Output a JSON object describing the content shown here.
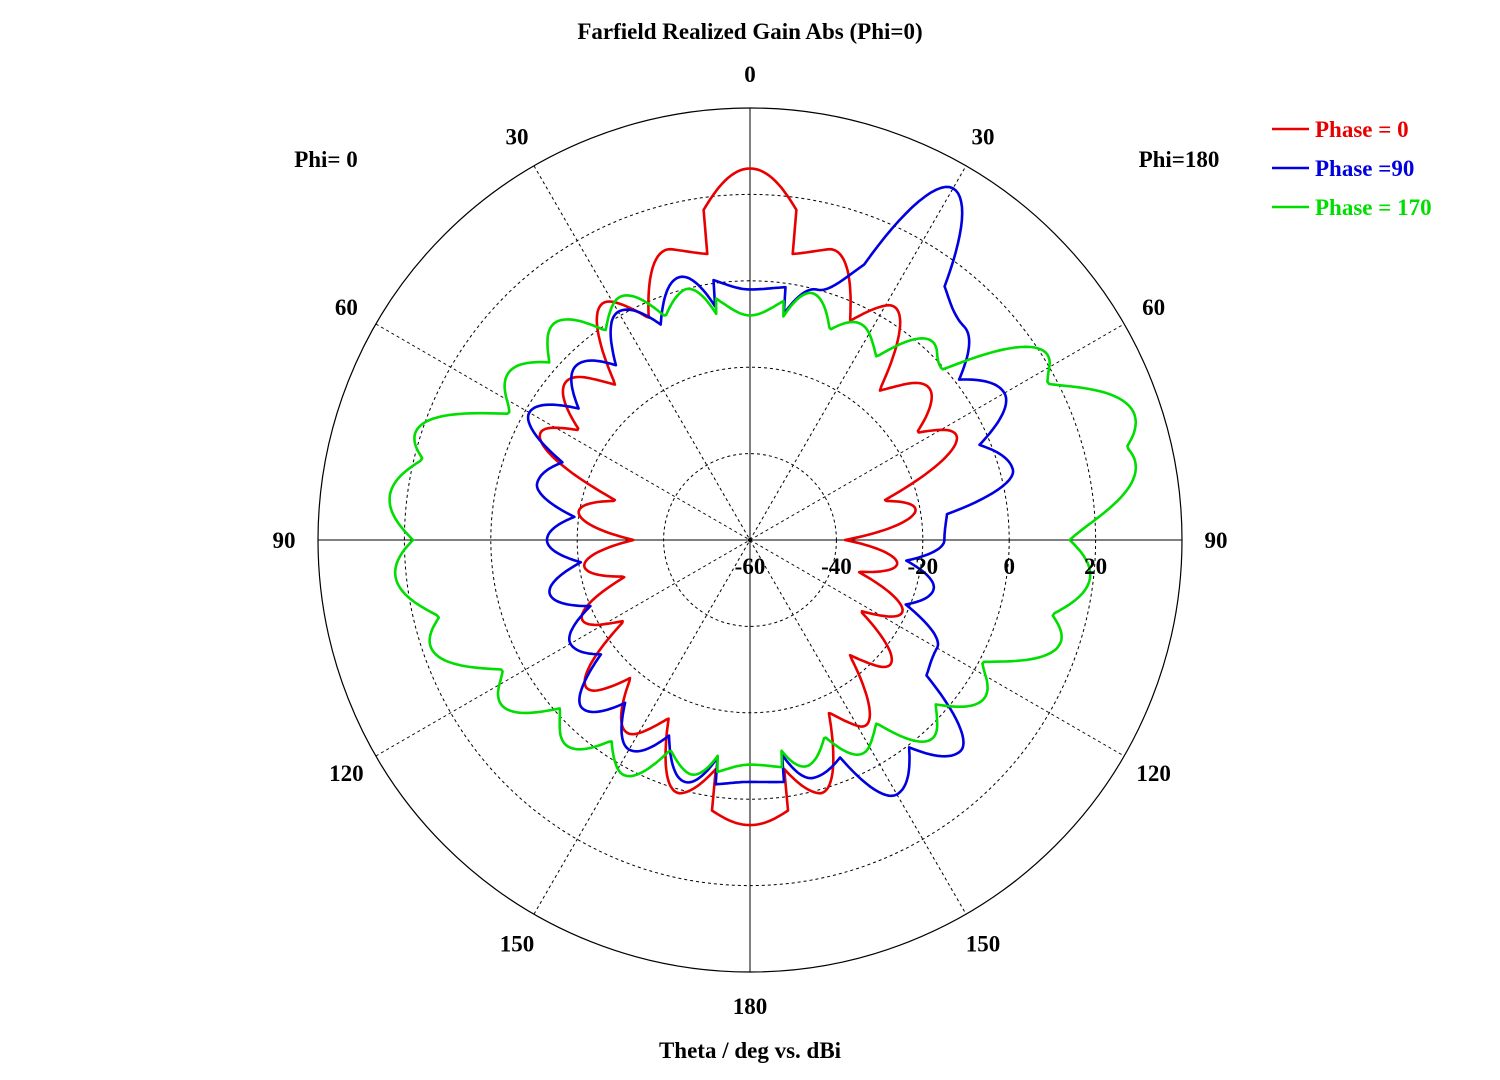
{
  "chart_data": {
    "type": "polar-line",
    "title": "Farfield Realized Gain Abs (Phi=0)",
    "xlabel": "Theta / deg vs. dBi",
    "side_labels": {
      "left": "Phi=  0",
      "right": "Phi=180"
    },
    "angle_ticks": {
      "top": "0",
      "upper_left": [
        "30",
        "60"
      ],
      "upper_right": [
        "30",
        "60"
      ],
      "left": "90",
      "right": "90",
      "lower_left": [
        "120",
        "150"
      ],
      "lower_right": [
        "120",
        "150"
      ],
      "bottom": "180"
    },
    "radial_ticks": [
      "-60",
      "-40",
      "-20",
      "0",
      "20"
    ],
    "radial_range": [
      -60,
      40
    ],
    "grid": true,
    "legend_position": "top-right",
    "theta_deg": [
      0,
      15,
      30,
      45,
      60,
      75,
      90,
      105,
      120,
      135,
      150,
      165,
      180
    ],
    "series": [
      {
        "name": "Phase = 0",
        "color": "#e80000",
        "gain_phi0_dbi": [
          26,
          10,
          5,
          -4,
          -3,
          -18,
          -23,
          -20,
          -16,
          -8,
          -7,
          1,
          6
        ],
        "gain_phi180_dbi": [
          26,
          10,
          4,
          -6,
          -4,
          -18,
          -28,
          -24,
          -20,
          -16,
          -9,
          1,
          6
        ]
      },
      {
        "name": "Phase =90",
        "color": "#0000e0",
        "gain_phi0_dbi": [
          -2,
          3,
          1,
          -3,
          -1,
          -9,
          -13,
          -12,
          -12,
          -5,
          -4,
          -2,
          -4
        ],
        "gain_phi180_dbi": [
          -2,
          0,
          34,
          10,
          8,
          3,
          -15,
          -16,
          -10,
          9,
          8,
          -3,
          -4
        ]
      },
      {
        "name": "Phase = 170",
        "color": "#00dd00",
        "gain_phi0_dbi": [
          -8,
          0,
          4,
          8,
          8,
          24,
          24,
          20,
          10,
          4,
          2,
          -4,
          -8
        ],
        "gain_phi180_dbi": [
          -8,
          -1,
          -4,
          3,
          23,
          36,
          20,
          18,
          6,
          3,
          -4,
          -6,
          -8
        ]
      }
    ]
  }
}
